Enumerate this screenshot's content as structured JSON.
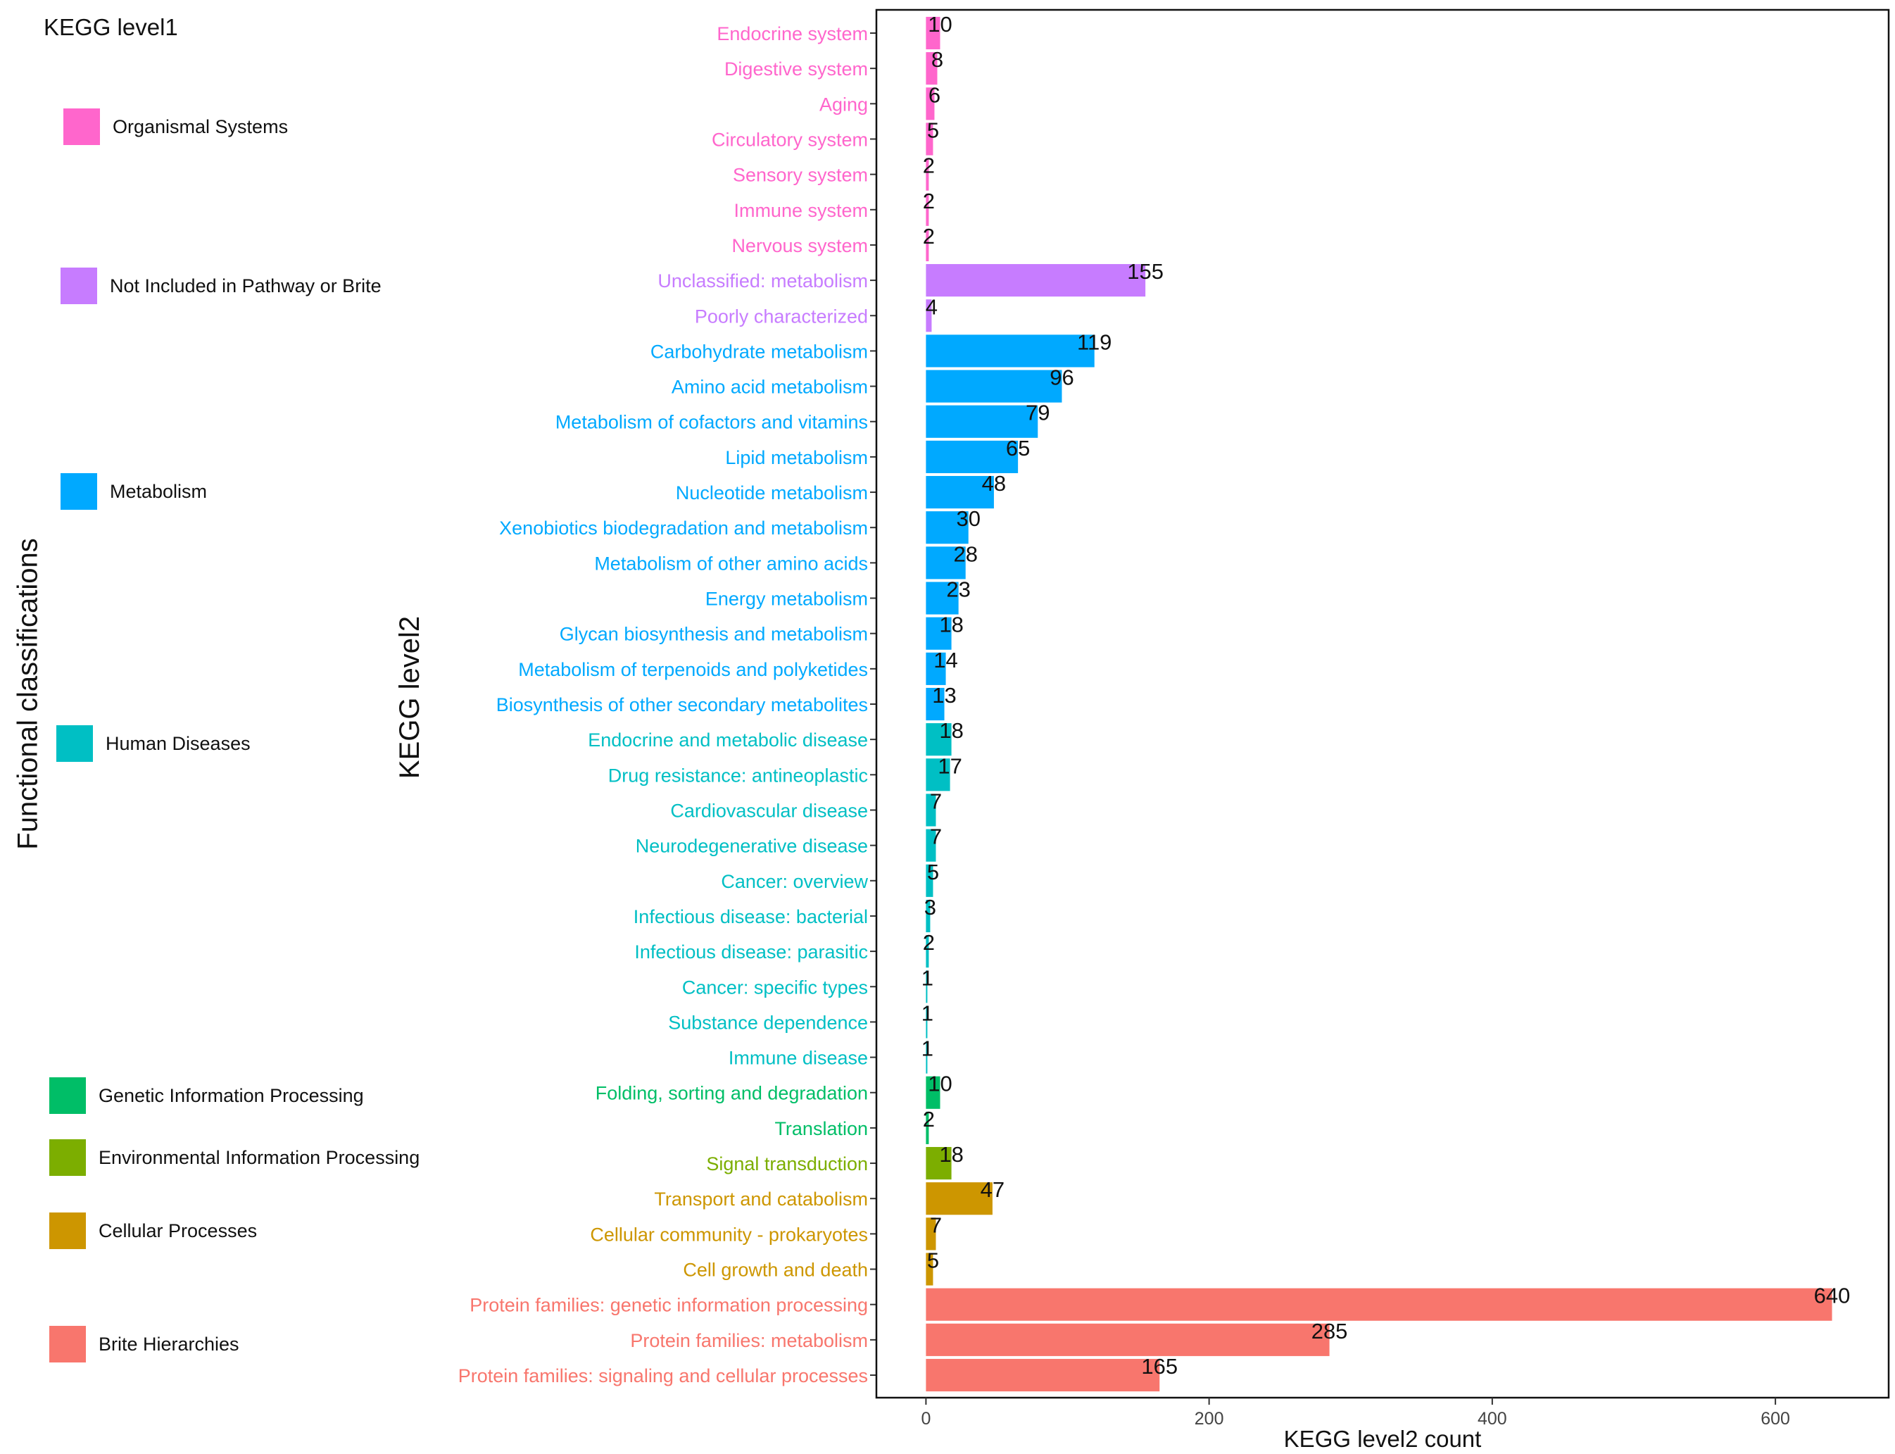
{
  "chart_data": {
    "type": "bar",
    "orientation": "horizontal",
    "xlabel": "KEGG level2 count",
    "ylabel": "KEGG level2",
    "outer_label": "Functional classifications",
    "legend_title": "KEGG level1",
    "xlim": [
      -35,
      680
    ],
    "x_ticks": [
      0,
      200,
      400,
      600
    ],
    "groups": [
      {
        "name": "Organismal Systems",
        "color": "#ff66cc"
      },
      {
        "name": "Not Included in Pathway or Brite",
        "color": "#c77cff"
      },
      {
        "name": "Metabolism",
        "color": "#00a9ff"
      },
      {
        "name": "Human Diseases",
        "color": "#00bfc4"
      },
      {
        "name": "Genetic Information Processing",
        "color": "#00be67"
      },
      {
        "name": "Environmental Information Processing",
        "color": "#7cae00"
      },
      {
        "name": "Cellular Processes",
        "color": "#cd9600"
      },
      {
        "name": "Brite Hierarchies",
        "color": "#f8766d"
      }
    ],
    "categories": [
      "Endocrine system",
      "Digestive system",
      "Aging",
      "Circulatory system",
      "Sensory system",
      "Immune system",
      "Nervous system",
      "Unclassified: metabolism",
      "Poorly characterized",
      "Carbohydrate metabolism",
      "Amino acid metabolism",
      "Metabolism of cofactors and vitamins",
      "Lipid metabolism",
      "Nucleotide metabolism",
      "Xenobiotics biodegradation and metabolism",
      "Metabolism of other amino acids",
      "Energy metabolism",
      "Glycan biosynthesis and metabolism",
      "Metabolism of terpenoids and polyketides",
      "Biosynthesis of other secondary metabolites",
      "Endocrine and metabolic disease",
      "Drug resistance: antineoplastic",
      "Cardiovascular disease",
      "Neurodegenerative disease",
      "Cancer: overview",
      "Infectious disease: bacterial",
      "Infectious disease: parasitic",
      "Cancer: specific types",
      "Substance dependence",
      "Immune disease",
      "Folding, sorting and degradation",
      "Translation",
      "Signal transduction",
      "Transport and catabolism",
      "Cellular community - prokaryotes",
      "Cell growth and death",
      "Protein families: genetic information processing",
      "Protein families: metabolism",
      "Protein families: signaling and cellular processes"
    ],
    "values": [
      10,
      8,
      6,
      5,
      2,
      2,
      2,
      155,
      4,
      119,
      96,
      79,
      65,
      48,
      30,
      28,
      23,
      18,
      14,
      13,
      18,
      17,
      7,
      7,
      5,
      3,
      2,
      1,
      1,
      1,
      10,
      2,
      18,
      47,
      7,
      5,
      640,
      285,
      165
    ],
    "group_index": [
      0,
      0,
      0,
      0,
      0,
      0,
      0,
      1,
      1,
      2,
      2,
      2,
      2,
      2,
      2,
      2,
      2,
      2,
      2,
      2,
      3,
      3,
      3,
      3,
      3,
      3,
      3,
      3,
      3,
      3,
      4,
      4,
      5,
      6,
      6,
      6,
      7,
      7,
      7
    ],
    "grid": false,
    "legend_position": "left"
  }
}
